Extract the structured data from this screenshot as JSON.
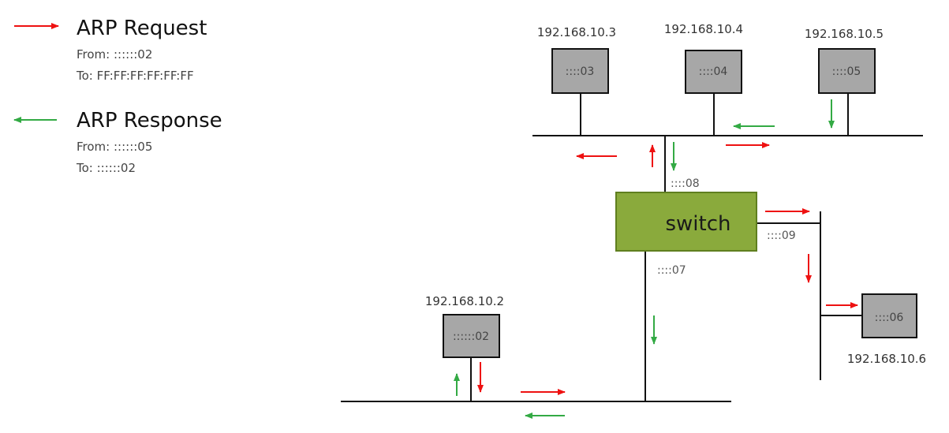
{
  "colors": {
    "request": "#ee1111",
    "response": "#33aa44",
    "host_fill": "#a7a7a7",
    "switch_fill": "#8aaa3c",
    "switch_stroke": "#5f7f1f",
    "line": "#111111"
  },
  "legend": {
    "request": {
      "title": "ARP Request",
      "from": "From: ::::::02",
      "to": "To: FF:FF:FF:FF:FF:FF"
    },
    "response": {
      "title": "ARP Response",
      "from": "From: ::::::05",
      "to": "To: ::::::02"
    }
  },
  "hosts": {
    "h03": {
      "ip": "192.168.10.3",
      "mac": "::::03"
    },
    "h04": {
      "ip": "192.168.10.4",
      "mac": "::::04"
    },
    "h05": {
      "ip": "192.168.10.5",
      "mac": "::::05"
    },
    "h02": {
      "ip": "192.168.10.2",
      "mac": "::::::02"
    },
    "h06": {
      "ip": "192.168.10.6",
      "mac": "::::06"
    }
  },
  "switch": {
    "label": "switch",
    "ports": {
      "p08": "::::08",
      "p09": "::::09",
      "p07": "::::07"
    }
  }
}
